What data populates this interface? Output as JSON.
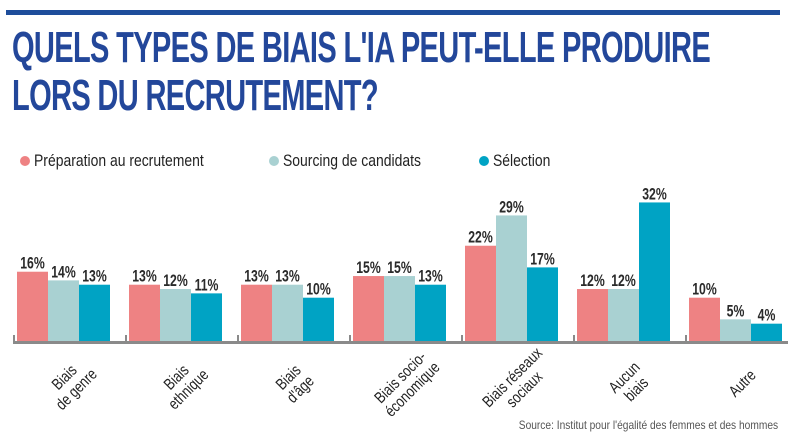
{
  "header": {
    "title_line1": "QUELS TYPES DE BIAIS L'IA PEUT-ELLE PRODUIRE",
    "title_line2": "LORS DU RECRUTEMENT?"
  },
  "colors": {
    "rule": "#1e4d9b",
    "title": "#23479a",
    "axis": "#8a8a8a"
  },
  "source": "Source: Institut pour l'égalité des femmes et des hommes",
  "chart_data": {
    "type": "bar",
    "title": "QUELS TYPES DE BIAIS L'IA PEUT-ELLE PRODUIRE LORS DU RECRUTEMENT?",
    "xlabel": "",
    "ylabel": "",
    "ylim": [
      0,
      32
    ],
    "grid": false,
    "legend_position": "top-left",
    "categories": [
      [
        "Biais",
        "de genre"
      ],
      [
        "Biais",
        "ethnique"
      ],
      [
        "Biais",
        "d'âge"
      ],
      [
        "Biais socio-",
        "économique"
      ],
      [
        "Biais réseaux",
        "sociaux"
      ],
      [
        "Aucun",
        "biais"
      ],
      [
        "Autre"
      ]
    ],
    "series": [
      {
        "name": "Préparation au recrutement",
        "color": "#ee8283",
        "values": [
          16,
          13,
          13,
          15,
          22,
          12,
          10
        ]
      },
      {
        "name": "Sourcing de candidats",
        "color": "#a9d1d2",
        "values": [
          14,
          12,
          13,
          15,
          29,
          12,
          5
        ]
      },
      {
        "name": "Sélection",
        "color": "#00a3c4",
        "values": [
          13,
          11,
          10,
          13,
          17,
          32,
          4
        ]
      }
    ],
    "value_suffix": "%"
  }
}
